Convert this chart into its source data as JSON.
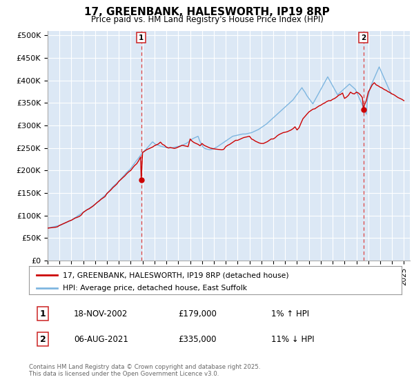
{
  "title": "17, GREENBANK, HALESWORTH, IP19 8RP",
  "subtitle": "Price paid vs. HM Land Registry's House Price Index (HPI)",
  "xlim": [
    1995.0,
    2025.5
  ],
  "ylim": [
    0,
    510000
  ],
  "yticks": [
    0,
    50000,
    100000,
    150000,
    200000,
    250000,
    300000,
    350000,
    400000,
    450000,
    500000
  ],
  "ytick_labels": [
    "£0",
    "£50K",
    "£100K",
    "£150K",
    "£200K",
    "£250K",
    "£300K",
    "£350K",
    "£400K",
    "£450K",
    "£500K"
  ],
  "xticks": [
    1995,
    1996,
    1997,
    1998,
    1999,
    2000,
    2001,
    2002,
    2003,
    2004,
    2005,
    2006,
    2007,
    2008,
    2009,
    2010,
    2011,
    2012,
    2013,
    2014,
    2015,
    2016,
    2017,
    2018,
    2019,
    2020,
    2021,
    2022,
    2023,
    2024,
    2025
  ],
  "bg_color": "#dce8f5",
  "grid_color": "#ffffff",
  "hpi_line_color": "#7eb6e0",
  "price_line_color": "#cc0000",
  "vline_color": "#dd4444",
  "legend_label1": "17, GREENBANK, HALESWORTH, IP19 8RP (detached house)",
  "legend_label2": "HPI: Average price, detached house, East Suffolk",
  "vline1_x": 2002.88,
  "vline2_x": 2021.59,
  "marker1_x": 2002.88,
  "marker1_y": 179000,
  "marker2_x": 2021.59,
  "marker2_y": 335000,
  "table_row1": [
    "1",
    "18-NOV-2002",
    "£179,000",
    "1% ↑ HPI"
  ],
  "table_row2": [
    "2",
    "06-AUG-2021",
    "£335,000",
    "11% ↓ HPI"
  ],
  "footer": "Contains HM Land Registry data © Crown copyright and database right 2025.\nThis data is licensed under the Open Government Licence v3.0.",
  "hpi_y": [
    72000,
    72500,
    73000,
    73500,
    74000,
    74500,
    75000,
    75500,
    76000,
    76500,
    77000,
    77500,
    78000,
    78500,
    79500,
    80500,
    81500,
    82500,
    83500,
    84500,
    85500,
    86500,
    87500,
    88500,
    89500,
    91000,
    92500,
    94000,
    95500,
    97000,
    98500,
    100000,
    101500,
    103000,
    104500,
    106000,
    107000,
    108500,
    110000,
    111500,
    113000,
    114500,
    116000,
    117500,
    119000,
    120500,
    122000,
    123500,
    125000,
    127000,
    129000,
    131000,
    133000,
    135000,
    137000,
    139000,
    141000,
    143000,
    145000,
    147000,
    149000,
    151500,
    154000,
    156500,
    159000,
    161500,
    164000,
    166000,
    168000,
    170000,
    172000,
    174000,
    176000,
    178500,
    181000,
    183500,
    186000,
    188500,
    191000,
    193500,
    196000,
    198000,
    200000,
    202000,
    204500,
    207500,
    210500,
    213500,
    216500,
    219500,
    222500,
    225000,
    228000,
    231000,
    234000,
    237000,
    240000,
    242000,
    244000,
    246000,
    248500,
    251000,
    253500,
    256000,
    258500,
    261000,
    263500,
    262000,
    260000,
    258000,
    257000,
    256500,
    256000,
    255000,
    254000,
    253500,
    253000,
    252500,
    252000,
    251500,
    251000,
    250500,
    250000,
    250000,
    250000,
    250000,
    250500,
    251000,
    251500,
    252000,
    252500,
    253000,
    253500,
    254000,
    254500,
    255000,
    256000,
    257000,
    258000,
    259000,
    260000,
    261500,
    263000,
    264500,
    266000,
    268000,
    270000,
    271000,
    272000,
    273000,
    274000,
    275000,
    276000,
    270000,
    264000,
    260000,
    256000,
    252000,
    250000,
    249000,
    248000,
    247500,
    247000,
    246500,
    246000,
    246500,
    247000,
    248000,
    249000,
    250000,
    251000,
    252000,
    253500,
    255000,
    256500,
    258000,
    259500,
    261000,
    262500,
    264000,
    265500,
    267000,
    268500,
    270000,
    271500,
    273000,
    274500,
    276000,
    276500,
    277000,
    277500,
    278000,
    278500,
    279000,
    279500,
    280000,
    280500,
    281000,
    281000,
    281000,
    281000,
    281500,
    282000,
    282500,
    283000,
    283500,
    284000,
    285000,
    286000,
    287000,
    288000,
    289000,
    290000,
    291000,
    292500,
    294000,
    295500,
    297000,
    298500,
    300000,
    301500,
    303000,
    305000,
    307000,
    309000,
    311000,
    313000,
    315000,
    317000,
    319000,
    321000,
    323000,
    325000,
    327000,
    329000,
    331000,
    333000,
    335000,
    337000,
    339000,
    341000,
    343000,
    345000,
    347000,
    349000,
    351000,
    353000,
    355000,
    357000,
    360000,
    363000,
    366000,
    369000,
    372000,
    375000,
    378000,
    381000,
    384000,
    380000,
    377000,
    374000,
    370000,
    366000,
    363000,
    360000,
    357000,
    354000,
    351000,
    348000,
    352000,
    356000,
    360000,
    364000,
    368000,
    372000,
    376000,
    380000,
    384000,
    388000,
    392000,
    396000,
    400000,
    404000,
    408000,
    404000,
    400000,
    396000,
    392000,
    388000,
    384000,
    380000,
    376000,
    372000,
    368000,
    370000,
    372000,
    374000,
    376000,
    378000,
    380000,
    382000,
    384000,
    386000,
    388000,
    390000,
    392000,
    390000,
    388000,
    386000,
    384000,
    382000,
    380000,
    375000,
    370000,
    365000,
    360000,
    355000,
    350000,
    345000,
    340000,
    335000,
    330000,
    325000,
    355000,
    365000,
    375000,
    385000,
    390000,
    395000,
    400000,
    405000,
    410000,
    415000,
    420000,
    425000,
    430000,
    425000,
    420000,
    415000,
    410000,
    405000,
    400000,
    395000,
    390000,
    385000,
    380000,
    375000,
    370000
  ],
  "price_x": [
    1995.0,
    1995.17,
    1995.33,
    1995.5,
    1995.67,
    1995.83,
    1996.0,
    1996.17,
    1996.33,
    1996.5,
    1996.67,
    1996.83,
    1997.0,
    1997.17,
    1997.33,
    1997.5,
    1997.67,
    1997.83,
    1998.0,
    1998.17,
    1998.33,
    1998.5,
    1998.67,
    1998.83,
    1999.0,
    1999.17,
    1999.33,
    1999.5,
    1999.67,
    1999.83,
    2000.0,
    2000.17,
    2000.33,
    2000.5,
    2000.67,
    2000.83,
    2001.0,
    2001.17,
    2001.33,
    2001.5,
    2001.67,
    2001.83,
    2002.0,
    2002.17,
    2002.33,
    2002.5,
    2002.67,
    2002.83,
    2002.88,
    2003.0,
    2003.17,
    2003.33,
    2003.5,
    2003.67,
    2003.83,
    2004.0,
    2004.17,
    2004.33,
    2004.5,
    2004.67,
    2004.83,
    2005.0,
    2005.17,
    2005.33,
    2005.5,
    2005.67,
    2005.83,
    2006.0,
    2006.17,
    2006.33,
    2006.5,
    2006.67,
    2006.83,
    2007.0,
    2007.17,
    2007.33,
    2007.5,
    2007.67,
    2007.83,
    2008.0,
    2008.17,
    2008.33,
    2008.5,
    2008.67,
    2008.83,
    2009.0,
    2009.17,
    2009.33,
    2009.5,
    2009.67,
    2009.83,
    2010.0,
    2010.17,
    2010.33,
    2010.5,
    2010.67,
    2010.83,
    2011.0,
    2011.17,
    2011.33,
    2011.5,
    2011.67,
    2011.83,
    2012.0,
    2012.17,
    2012.33,
    2012.5,
    2012.67,
    2012.83,
    2013.0,
    2013.17,
    2013.33,
    2013.5,
    2013.67,
    2013.83,
    2014.0,
    2014.17,
    2014.33,
    2014.5,
    2014.67,
    2014.83,
    2015.0,
    2015.17,
    2015.33,
    2015.5,
    2015.67,
    2015.83,
    2016.0,
    2016.17,
    2016.33,
    2016.5,
    2016.67,
    2016.83,
    2017.0,
    2017.17,
    2017.33,
    2017.5,
    2017.67,
    2017.83,
    2018.0,
    2018.17,
    2018.33,
    2018.5,
    2018.67,
    2018.83,
    2019.0,
    2019.17,
    2019.33,
    2019.5,
    2019.67,
    2019.83,
    2020.0,
    2020.17,
    2020.33,
    2020.5,
    2020.67,
    2020.83,
    2021.0,
    2021.17,
    2021.33,
    2021.5,
    2021.59,
    2021.67,
    2021.83,
    2022.0,
    2022.17,
    2022.33,
    2022.5,
    2022.67,
    2022.83,
    2023.0,
    2023.17,
    2023.33,
    2023.5,
    2023.67,
    2023.83,
    2024.0,
    2024.17,
    2024.33,
    2024.5,
    2024.67,
    2024.83,
    2025.0
  ],
  "price_y": [
    72000,
    72500,
    73000,
    73500,
    74000,
    75000,
    78000,
    80000,
    82000,
    84000,
    86000,
    88000,
    89500,
    92000,
    94500,
    96000,
    98000,
    101000,
    107000,
    110000,
    113000,
    115000,
    118000,
    121000,
    125000,
    129000,
    132000,
    136000,
    139000,
    142000,
    149000,
    153000,
    157000,
    162000,
    166000,
    170000,
    176000,
    180000,
    184000,
    188000,
    193000,
    197000,
    200000,
    206000,
    211000,
    215000,
    222000,
    230000,
    179000,
    240000,
    243000,
    246000,
    248000,
    250000,
    252000,
    255000,
    257000,
    259000,
    263000,
    258000,
    256000,
    252000,
    250000,
    251000,
    250000,
    249000,
    250000,
    252000,
    254000,
    256000,
    255000,
    254000,
    253000,
    270000,
    265000,
    262000,
    260000,
    258000,
    255000,
    260000,
    256000,
    254000,
    252000,
    250000,
    249000,
    248000,
    247500,
    247000,
    246500,
    246000,
    247000,
    253000,
    256000,
    258000,
    261000,
    264000,
    267000,
    267000,
    269000,
    271000,
    273000,
    274000,
    275000,
    276000,
    270000,
    268000,
    265000,
    263000,
    261000,
    260000,
    260000,
    262000,
    264000,
    267000,
    270000,
    270000,
    273000,
    277000,
    280000,
    282000,
    284000,
    285000,
    286000,
    288000,
    290000,
    293000,
    297000,
    290000,
    295000,
    305000,
    315000,
    320000,
    325000,
    330000,
    333000,
    336000,
    337000,
    340000,
    343000,
    345000,
    348000,
    350000,
    353000,
    355000,
    355000,
    358000,
    360000,
    363000,
    367000,
    369000,
    372000,
    360000,
    363000,
    367000,
    374000,
    371000,
    370000,
    374000,
    372000,
    368000,
    362000,
    335000,
    345000,
    355000,
    374000,
    382000,
    390000,
    395000,
    390000,
    388000,
    385000,
    383000,
    380000,
    378000,
    375000,
    373000,
    370000,
    368000,
    365000,
    362000,
    360000,
    358000,
    355000
  ]
}
